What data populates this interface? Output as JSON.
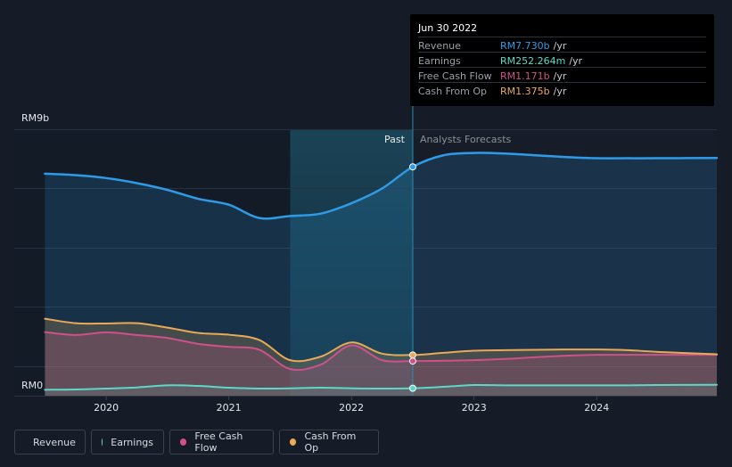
{
  "chart_data": {
    "type": "area",
    "title": "",
    "y_axis": {
      "top_label": "RM9b",
      "bottom_label": "RM0",
      "ylim": [
        0,
        9
      ]
    },
    "x_ticks": [
      {
        "label": "2020",
        "year": 2020.0
      },
      {
        "label": "2021",
        "year": 2021.0
      },
      {
        "label": "2022",
        "year": 2022.0
      },
      {
        "label": "2023",
        "year": 2023.0
      },
      {
        "label": "2024",
        "year": 2024.0
      }
    ],
    "x_range": [
      2019.25,
      2024.98
    ],
    "past_label": "Past",
    "forecast_label": "Analysts Forecasts",
    "past_start_year": 2021.5,
    "divider_year": 2022.5,
    "series": [
      {
        "name": "Revenue",
        "color": "#2f9be6",
        "points": [
          [
            2019.5,
            7.5
          ],
          [
            2019.75,
            7.45
          ],
          [
            2020.0,
            7.35
          ],
          [
            2020.25,
            7.18
          ],
          [
            2020.5,
            6.95
          ],
          [
            2020.75,
            6.65
          ],
          [
            2021.0,
            6.45
          ],
          [
            2021.25,
            6.0
          ],
          [
            2021.5,
            6.07
          ],
          [
            2021.75,
            6.15
          ],
          [
            2022.0,
            6.5
          ],
          [
            2022.25,
            7.0
          ],
          [
            2022.5,
            7.73
          ],
          [
            2022.75,
            8.12
          ],
          [
            2023.0,
            8.2
          ],
          [
            2023.25,
            8.18
          ],
          [
            2023.5,
            8.12
          ],
          [
            2023.75,
            8.06
          ],
          [
            2024.0,
            8.02
          ],
          [
            2024.25,
            8.02
          ],
          [
            2024.5,
            8.02
          ],
          [
            2024.98,
            8.03
          ]
        ]
      },
      {
        "name": "Earnings",
        "color": "#5dd8c8",
        "points": [
          [
            2019.5,
            0.2
          ],
          [
            2019.75,
            0.21
          ],
          [
            2020.0,
            0.24
          ],
          [
            2020.25,
            0.28
          ],
          [
            2020.5,
            0.35
          ],
          [
            2020.75,
            0.33
          ],
          [
            2021.0,
            0.27
          ],
          [
            2021.25,
            0.24
          ],
          [
            2021.5,
            0.25
          ],
          [
            2021.75,
            0.27
          ],
          [
            2022.0,
            0.25
          ],
          [
            2022.25,
            0.24
          ],
          [
            2022.5,
            0.252
          ],
          [
            2022.75,
            0.3
          ],
          [
            2023.0,
            0.36
          ],
          [
            2023.25,
            0.35
          ],
          [
            2023.5,
            0.35
          ],
          [
            2023.75,
            0.35
          ],
          [
            2024.0,
            0.35
          ],
          [
            2024.25,
            0.35
          ],
          [
            2024.5,
            0.36
          ],
          [
            2024.98,
            0.37
          ]
        ]
      },
      {
        "name": "Free Cash Flow",
        "color": "#d0508a",
        "points": [
          [
            2019.5,
            2.15
          ],
          [
            2019.75,
            2.05
          ],
          [
            2020.0,
            2.14
          ],
          [
            2020.25,
            2.05
          ],
          [
            2020.5,
            1.95
          ],
          [
            2020.75,
            1.75
          ],
          [
            2021.0,
            1.65
          ],
          [
            2021.25,
            1.55
          ],
          [
            2021.5,
            0.9
          ],
          [
            2021.75,
            1.05
          ],
          [
            2022.0,
            1.7
          ],
          [
            2022.25,
            1.2
          ],
          [
            2022.5,
            1.171
          ],
          [
            2022.75,
            1.18
          ],
          [
            2023.0,
            1.2
          ],
          [
            2023.25,
            1.24
          ],
          [
            2023.5,
            1.3
          ],
          [
            2023.75,
            1.35
          ],
          [
            2024.0,
            1.38
          ],
          [
            2024.25,
            1.38
          ],
          [
            2024.5,
            1.38
          ],
          [
            2024.98,
            1.38
          ]
        ]
      },
      {
        "name": "Cash From Op",
        "color": "#e9a957",
        "points": [
          [
            2019.5,
            2.6
          ],
          [
            2019.75,
            2.45
          ],
          [
            2020.0,
            2.44
          ],
          [
            2020.25,
            2.45
          ],
          [
            2020.5,
            2.3
          ],
          [
            2020.75,
            2.12
          ],
          [
            2021.0,
            2.06
          ],
          [
            2021.25,
            1.88
          ],
          [
            2021.5,
            1.2
          ],
          [
            2021.75,
            1.32
          ],
          [
            2022.0,
            1.8
          ],
          [
            2022.25,
            1.42
          ],
          [
            2022.5,
            1.375
          ],
          [
            2022.75,
            1.45
          ],
          [
            2023.0,
            1.52
          ],
          [
            2023.25,
            1.54
          ],
          [
            2023.5,
            1.55
          ],
          [
            2023.75,
            1.56
          ],
          [
            2024.0,
            1.56
          ],
          [
            2024.25,
            1.54
          ],
          [
            2024.5,
            1.48
          ],
          [
            2024.98,
            1.4
          ]
        ]
      }
    ],
    "highlight_year": 2022.5,
    "highlight_values": {
      "Revenue": 7.73,
      "Earnings": 0.252,
      "Free Cash Flow": 1.171,
      "Cash From Op": 1.375
    }
  },
  "tooltip": {
    "date": "Jun 30 2022",
    "rows": [
      {
        "label": "Revenue",
        "value": "RM7.730b",
        "unit": "/yr",
        "color": "#2f9be6"
      },
      {
        "label": "Earnings",
        "value": "RM252.264m",
        "unit": "/yr",
        "color": "#5dd8c8"
      },
      {
        "label": "Free Cash Flow",
        "value": "RM1.171b",
        "unit": "/yr",
        "color": "#d0508a"
      },
      {
        "label": "Cash From Op",
        "value": "RM1.375b",
        "unit": "/yr",
        "color": "#e9a957"
      }
    ]
  },
  "legend": [
    {
      "label": "Revenue",
      "color": "#2f9be6"
    },
    {
      "label": "Earnings",
      "color": "#5dd8c8"
    },
    {
      "label": "Free Cash Flow",
      "color": "#d0508a"
    },
    {
      "label": "Cash From Op",
      "color": "#e9a957"
    }
  ]
}
